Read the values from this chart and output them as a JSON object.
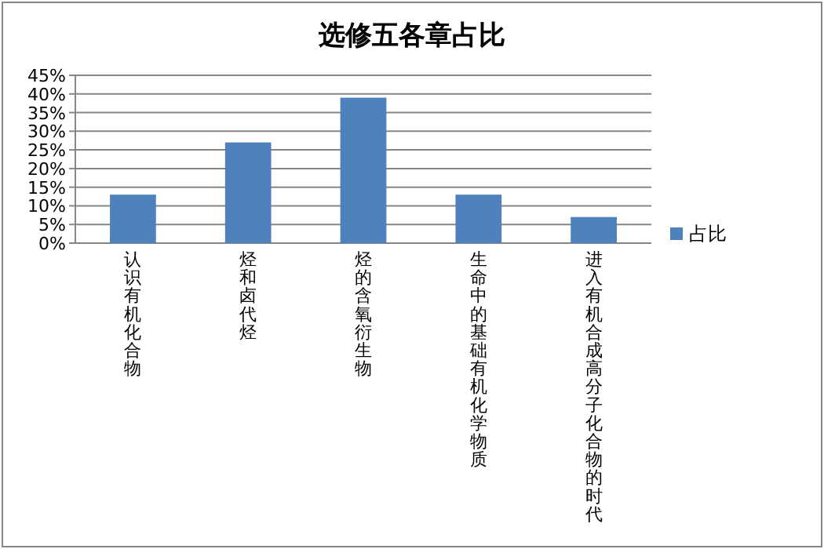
{
  "chart_data": {
    "type": "bar",
    "title": "选修五各章占比",
    "categories": [
      "认识有机化合物",
      "烃和卤代烃",
      "烃的含氧衍生物",
      "生命中的基础有机化学物质",
      "进入有机合成高分子化合物的时代"
    ],
    "series": [
      {
        "name": "占比",
        "color": "#4f81bd",
        "values": [
          13,
          27,
          39,
          13,
          7
        ]
      }
    ],
    "ylim": [
      0,
      45
    ],
    "yticks": [
      {
        "value": 0,
        "label": "0%"
      },
      {
        "value": 5,
        "label": "5%"
      },
      {
        "value": 10,
        "label": "10%"
      },
      {
        "value": 15,
        "label": "15%"
      },
      {
        "value": 20,
        "label": "20%"
      },
      {
        "value": 25,
        "label": "25%"
      },
      {
        "value": 30,
        "label": "30%"
      },
      {
        "value": 35,
        "label": "35%"
      },
      {
        "value": 40,
        "label": "40%"
      },
      {
        "value": 45,
        "label": "45%"
      }
    ],
    "grid": "y",
    "legend": "right"
  }
}
